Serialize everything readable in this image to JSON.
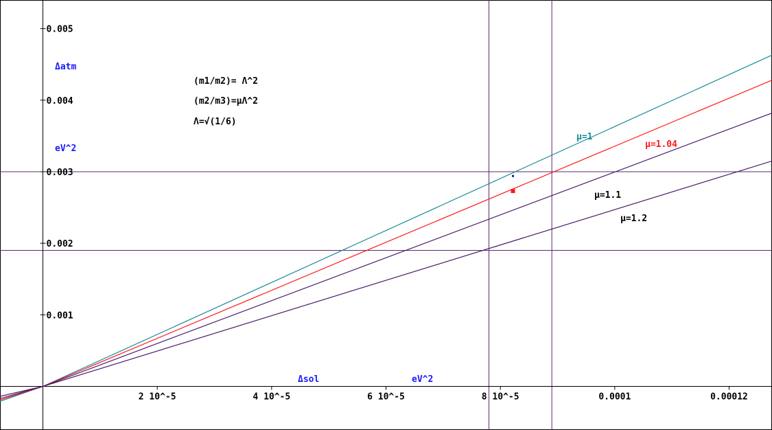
{
  "chart_data": {
    "type": "line",
    "xlim": [
      -7.5e-06,
      0.0001275
    ],
    "ylim": [
      -0.00061,
      0.0054
    ],
    "x_ticks": [
      {
        "value": 2e-05,
        "label": "2 10^-5"
      },
      {
        "value": 4e-05,
        "label": "4 10^-5"
      },
      {
        "value": 6e-05,
        "label": "6 10^-5"
      },
      {
        "value": 8e-05,
        "label": "8 10^-5"
      },
      {
        "value": 0.0001,
        "label": "0.0001"
      },
      {
        "value": 0.00012,
        "label": "0.00012"
      }
    ],
    "y_ticks": [
      {
        "value": 0.001,
        "label": "0.001"
      },
      {
        "value": 0.002,
        "label": "0.002"
      },
      {
        "value": 0.003,
        "label": "0.003"
      },
      {
        "value": 0.004,
        "label": "0.004"
      },
      {
        "value": 0.005,
        "label": "0.005"
      }
    ],
    "xlabel": {
      "quantity": "Δsol",
      "unit": "eV^2"
    },
    "ylabel": {
      "quantity": "Δatm",
      "unit": "eV^2"
    },
    "annotations": [
      "(m1/m2)= Λ^2",
      "(m2/m3)=μΛ^2",
      "Λ=√(1/6)"
    ],
    "series": [
      {
        "name": "μ=1",
        "color": "#1a8a9a",
        "x": [
          -7.5e-06,
          0.0,
          0.0001275
        ],
        "y": [
          -0.00021,
          0.0,
          0.00463
        ]
      },
      {
        "name": "μ=1.04",
        "color": "#ff1a1a",
        "x": [
          -7.5e-06,
          0.0,
          0.0001275
        ],
        "y": [
          -0.00019,
          0.0,
          0.00428
        ]
      },
      {
        "name": "μ=1.1",
        "color": "#4a1a6a",
        "x": [
          -7.5e-06,
          0.0,
          0.0001275
        ],
        "y": [
          -0.00017,
          0.0,
          0.00382
        ]
      },
      {
        "name": "μ=1.2",
        "color": "#4a1a6a",
        "x": [
          -7.5e-06,
          0.0,
          0.0001275
        ],
        "y": [
          -0.00014,
          0.0,
          0.00315
        ]
      }
    ],
    "reference_lines": {
      "horizontal": [
        0.003,
        0.0019
      ],
      "vertical": [
        7.8e-05,
        8.9e-05
      ],
      "color": "#5a2a6a"
    },
    "marked_points": [
      {
        "x": 8.22e-05,
        "y": 0.00294,
        "color": "#1a1a8a"
      },
      {
        "x": 8.22e-05,
        "y": 0.00273,
        "color": "#ff1a1a"
      }
    ],
    "grid": false
  }
}
